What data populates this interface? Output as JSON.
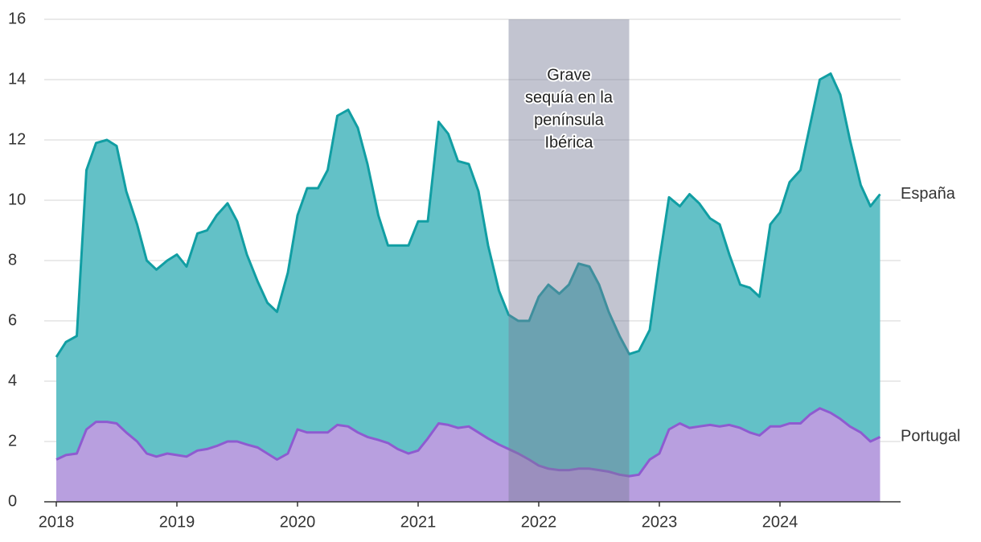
{
  "chart_data": {
    "type": "area",
    "x": [
      2018,
      2018.08,
      2018.17,
      2018.25,
      2018.33,
      2018.42,
      2018.5,
      2018.58,
      2018.67,
      2018.75,
      2018.83,
      2018.92,
      2019,
      2019.08,
      2019.17,
      2019.25,
      2019.33,
      2019.42,
      2019.5,
      2019.58,
      2019.67,
      2019.75,
      2019.83,
      2019.92,
      2020,
      2020.08,
      2020.17,
      2020.25,
      2020.33,
      2020.42,
      2020.5,
      2020.58,
      2020.67,
      2020.75,
      2020.83,
      2020.92,
      2021,
      2021.08,
      2021.17,
      2021.25,
      2021.33,
      2021.42,
      2021.5,
      2021.58,
      2021.67,
      2021.75,
      2021.83,
      2021.92,
      2022,
      2022.08,
      2022.17,
      2022.25,
      2022.33,
      2022.42,
      2022.5,
      2022.58,
      2022.67,
      2022.75,
      2022.83,
      2022.92,
      2023,
      2023.08,
      2023.17,
      2023.25,
      2023.33,
      2023.42,
      2023.5,
      2023.58,
      2023.67,
      2023.75,
      2023.83,
      2023.92,
      2024,
      2024.08,
      2024.17,
      2024.25,
      2024.33,
      2024.42,
      2024.5,
      2024.58,
      2024.67,
      2024.75,
      2024.83
    ],
    "series": [
      {
        "name": "España",
        "color": "#119ea3",
        "fill": "#63c1c7",
        "values": [
          4.8,
          5.3,
          5.5,
          11.0,
          11.9,
          12.0,
          11.8,
          10.3,
          9.2,
          8.0,
          7.7,
          8.0,
          8.2,
          7.8,
          8.9,
          9.0,
          9.5,
          9.9,
          9.3,
          8.2,
          7.3,
          6.6,
          6.3,
          7.6,
          9.5,
          10.4,
          10.4,
          11.0,
          12.8,
          13.0,
          12.4,
          11.2,
          9.5,
          8.5,
          8.5,
          8.5,
          9.3,
          9.3,
          12.6,
          12.2,
          11.3,
          11.2,
          10.3,
          8.5,
          7.0,
          6.2,
          6.0,
          6.0,
          6.8,
          7.2,
          6.9,
          7.2,
          7.9,
          7.8,
          7.2,
          6.3,
          5.5,
          4.9,
          5.0,
          5.7,
          8.0,
          10.1,
          9.8,
          10.2,
          9.9,
          9.4,
          9.2,
          8.2,
          7.2,
          7.1,
          6.8,
          9.2,
          9.6,
          10.6,
          11.0,
          12.5,
          14.0,
          14.2,
          13.5,
          12.0,
          10.5,
          9.8,
          10.2
        ]
      },
      {
        "name": "Portugal",
        "color": "#8e5bd0",
        "fill": "#b89fdf",
        "values": [
          1.4,
          1.55,
          1.6,
          2.4,
          2.65,
          2.65,
          2.6,
          2.3,
          2.0,
          1.6,
          1.5,
          1.6,
          1.55,
          1.5,
          1.7,
          1.75,
          1.85,
          2.0,
          2.0,
          1.9,
          1.8,
          1.6,
          1.4,
          1.6,
          2.4,
          2.3,
          2.3,
          2.3,
          2.55,
          2.5,
          2.3,
          2.15,
          2.05,
          1.95,
          1.75,
          1.6,
          1.7,
          2.1,
          2.6,
          2.55,
          2.45,
          2.5,
          2.3,
          2.1,
          1.9,
          1.75,
          1.6,
          1.4,
          1.2,
          1.1,
          1.05,
          1.05,
          1.1,
          1.1,
          1.05,
          1.0,
          0.9,
          0.85,
          0.9,
          1.4,
          1.6,
          2.4,
          2.6,
          2.45,
          2.5,
          2.55,
          2.5,
          2.55,
          2.45,
          2.3,
          2.2,
          2.5,
          2.5,
          2.6,
          2.6,
          2.9,
          3.1,
          2.95,
          2.75,
          2.5,
          2.3,
          2.0,
          2.15
        ]
      }
    ],
    "xlim": [
      2018,
      2025
    ],
    "xticks": [
      2018,
      2019,
      2020,
      2021,
      2022,
      2023,
      2024
    ],
    "ylim": [
      0,
      16
    ],
    "yticks": [
      0,
      2,
      4,
      6,
      8,
      10,
      12,
      14,
      16
    ],
    "grid": true,
    "shade": [
      2021.75,
      2022.75
    ],
    "annotation": [
      "Grave",
      "sequía en la",
      "península",
      "Ibérica"
    ]
  }
}
